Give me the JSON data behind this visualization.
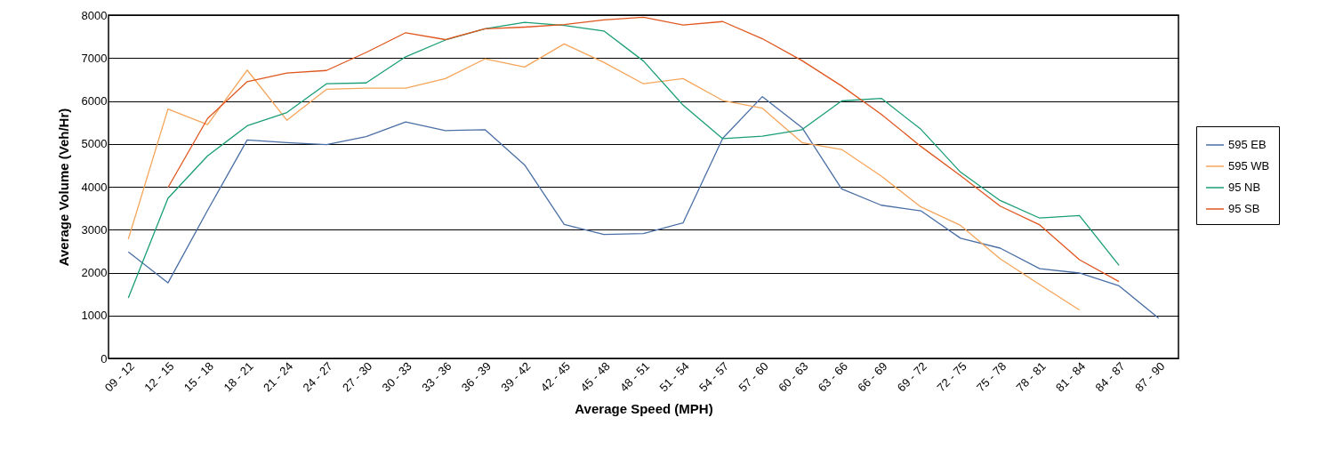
{
  "chart_data": {
    "type": "line",
    "xlabel": "Average Speed  (MPH)",
    "ylabel": "Average Volume (Veh/Hr)",
    "categories": [
      "09 - 12",
      "12 - 15",
      "15 - 18",
      "18 - 21",
      "21 - 24",
      "24 - 27",
      "27 - 30",
      "30 - 33",
      "33 - 36",
      "36 - 39",
      "39 - 42",
      "42 - 45",
      "45 - 48",
      "48 - 51",
      "51 - 54",
      "54 - 57",
      "57 - 60",
      "60 - 63",
      "63 - 66",
      "66 - 69",
      "69 - 72",
      "72 - 75",
      "75 - 78",
      "78 - 81",
      "81 - 84",
      "84 - 87",
      "87 - 90"
    ],
    "series": [
      {
        "name": "595 EB",
        "color": "#4a6fa5",
        "values": [
          2480,
          1760,
          3450,
          5090,
          5030,
          4980,
          5170,
          5510,
          5310,
          5330,
          4510,
          3120,
          2890,
          2910,
          3160,
          5130,
          6100,
          5380,
          3950,
          3570,
          3440,
          2800,
          2570,
          2090,
          1990,
          1690,
          940
        ]
      },
      {
        "name": "595 WB",
        "color": "#f5a55a",
        "values": [
          2780,
          5810,
          5450,
          6720,
          5550,
          6270,
          6300,
          6300,
          6520,
          6980,
          6790,
          7330,
          6900,
          6400,
          6520,
          6010,
          5830,
          5030,
          4870,
          4250,
          3530,
          3100,
          2320,
          1720,
          1130,
          null,
          null
        ]
      },
      {
        "name": "95 NB",
        "color": "#1a9e77",
        "values": [
          1410,
          3730,
          4720,
          5420,
          5730,
          6400,
          6420,
          7030,
          7420,
          7680,
          7830,
          7760,
          7630,
          6930,
          5900,
          5120,
          5180,
          5330,
          6000,
          6060,
          5340,
          4340,
          3680,
          3270,
          3330,
          2170,
          null
        ]
      },
      {
        "name": "95 SB",
        "color": "#e0561e",
        "values": [
          null,
          3980,
          5590,
          6450,
          6650,
          6710,
          7130,
          7590,
          7430,
          7680,
          7720,
          7780,
          7890,
          7950,
          7770,
          7850,
          7450,
          6940,
          6350,
          5690,
          4940,
          4260,
          3550,
          3110,
          2300,
          1790,
          null
        ]
      }
    ],
    "ylim": [
      0,
      8000
    ],
    "yticks": [
      0,
      1000,
      2000,
      3000,
      4000,
      5000,
      6000,
      7000,
      8000
    ],
    "grid": "y",
    "legend": "right",
    "marker": "none",
    "line_style": "solid"
  }
}
